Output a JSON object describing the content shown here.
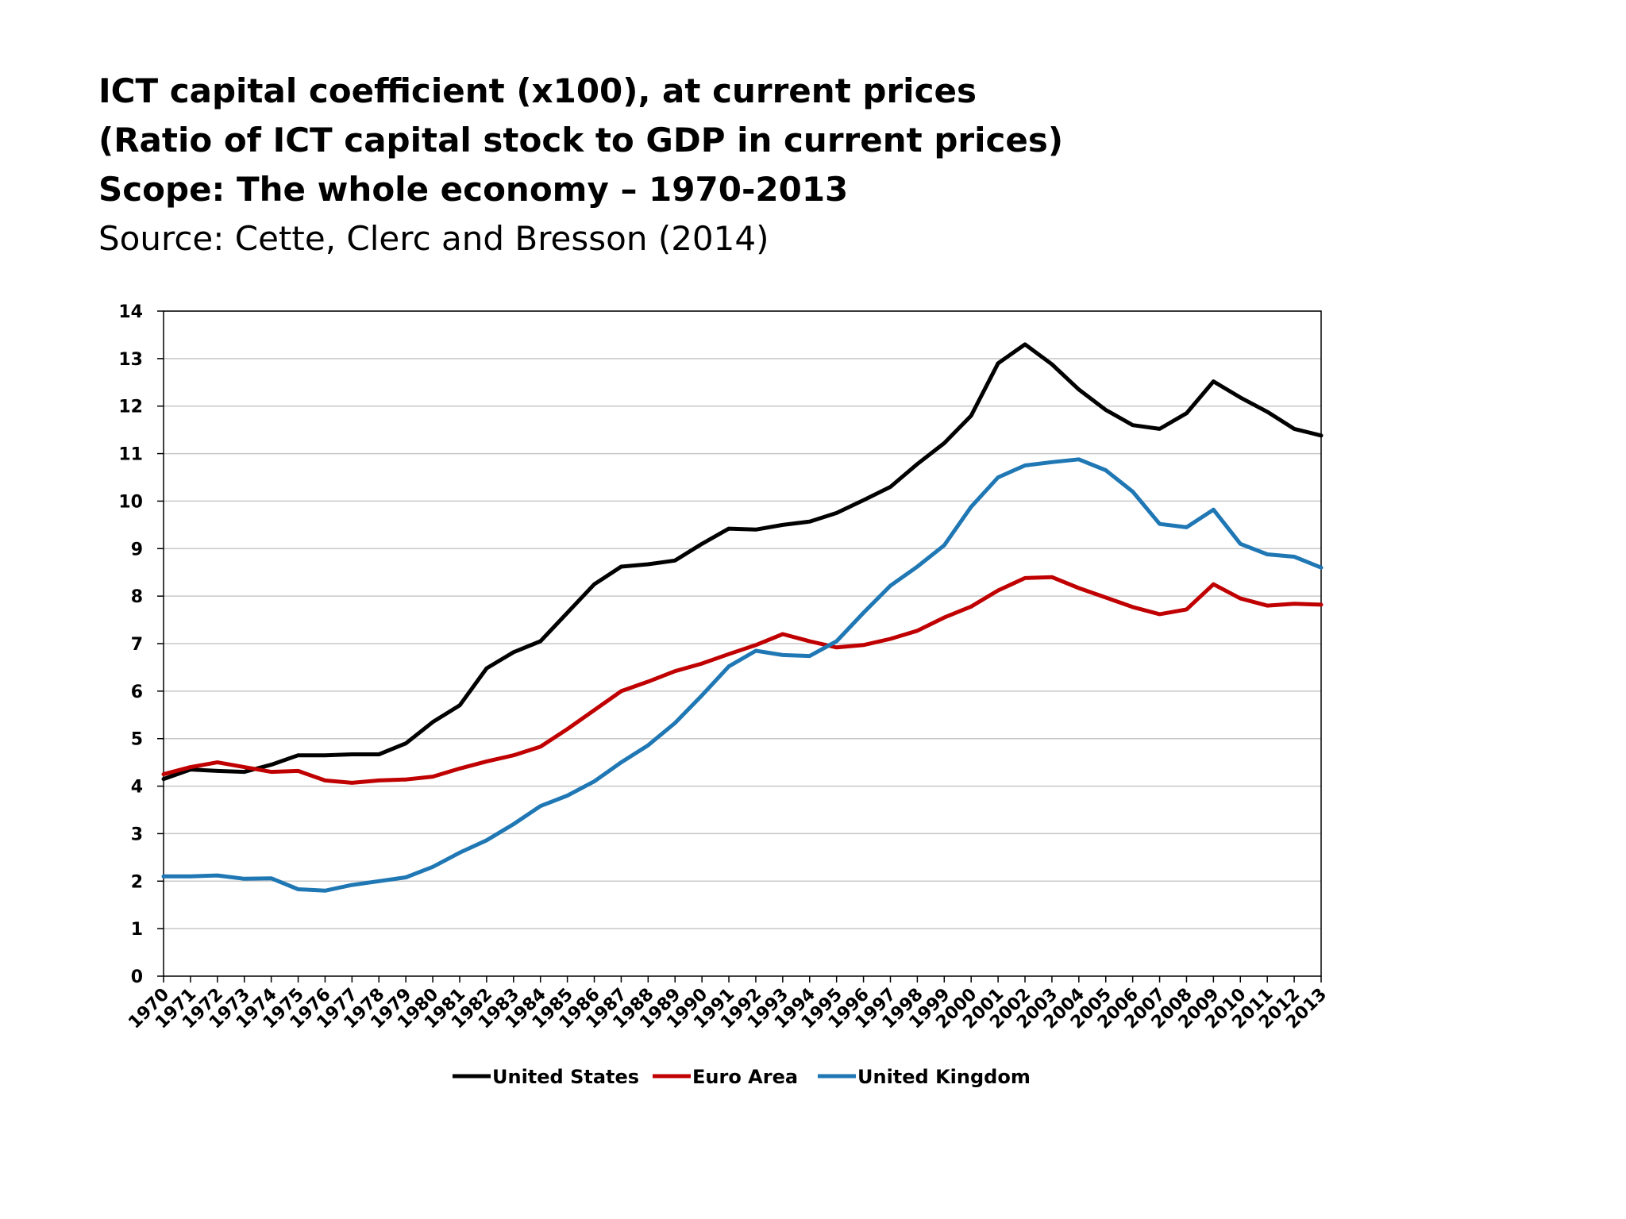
{
  "header": {
    "title_line1": "ICT capital coefficient (x100), at current prices",
    "title_line2": "(Ratio of ICT capital stock to GDP in current prices)",
    "title_line3": "Scope: The whole economy – 1970-2013",
    "source": "Source: Cette, Clerc and Bresson (2014)"
  },
  "chart_data": {
    "type": "line",
    "title": "ICT capital coefficient (x100), at current prices",
    "xlabel": "",
    "ylabel": "",
    "ylim": [
      0,
      14
    ],
    "yticks": [
      0,
      1,
      2,
      3,
      4,
      5,
      6,
      7,
      8,
      9,
      10,
      11,
      12,
      13,
      14
    ],
    "grid": true,
    "legend_position": "bottom",
    "x": [
      "1970",
      "1971",
      "1972",
      "1973",
      "1974",
      "1975",
      "1976",
      "1977",
      "1978",
      "1979",
      "1980",
      "1981",
      "1982",
      "1983",
      "1984",
      "1985",
      "1986",
      "1987",
      "1988",
      "1989",
      "1990",
      "1991",
      "1992",
      "1993",
      "1994",
      "1995",
      "1996",
      "1997",
      "1998",
      "1999",
      "2000",
      "2001",
      "2002",
      "2003",
      "2004",
      "2005",
      "2006",
      "2007",
      "2008",
      "2009",
      "2010",
      "2011",
      "2012",
      "2013"
    ],
    "series": [
      {
        "name": "United States",
        "color": "#000000",
        "values": [
          4.15,
          4.35,
          4.32,
          4.3,
          4.45,
          4.65,
          4.65,
          4.67,
          4.67,
          4.9,
          5.35,
          5.7,
          6.48,
          6.82,
          7.05,
          7.65,
          8.25,
          8.62,
          8.67,
          8.75,
          9.1,
          9.42,
          9.4,
          9.5,
          9.57,
          9.75,
          10.02,
          10.3,
          10.78,
          11.22,
          11.8,
          12.9,
          13.3,
          12.88,
          12.35,
          11.92,
          11.6,
          11.52,
          11.85,
          12.52,
          12.18,
          11.88,
          11.52,
          11.38
        ]
      },
      {
        "name": "Euro Area",
        "color": "#C00000",
        "values": [
          4.25,
          4.4,
          4.5,
          4.4,
          4.3,
          4.32,
          4.12,
          4.07,
          4.12,
          4.14,
          4.2,
          4.37,
          4.52,
          4.65,
          4.83,
          5.2,
          5.6,
          6.0,
          6.2,
          6.42,
          6.58,
          6.78,
          6.97,
          7.2,
          7.05,
          6.92,
          6.97,
          7.1,
          7.27,
          7.55,
          7.78,
          8.12,
          8.38,
          8.4,
          8.17,
          7.97,
          7.77,
          7.62,
          7.72,
          8.25,
          7.95,
          7.8,
          7.84,
          7.82
        ]
      },
      {
        "name": "United Kingdom",
        "color": "#1F77B4",
        "values": [
          2.1,
          2.1,
          2.12,
          2.05,
          2.06,
          1.83,
          1.8,
          1.92,
          2.0,
          2.08,
          2.3,
          2.6,
          2.86,
          3.2,
          3.58,
          3.8,
          4.1,
          4.5,
          4.86,
          5.33,
          5.91,
          6.52,
          6.85,
          6.76,
          6.74,
          7.05,
          7.65,
          8.22,
          8.62,
          9.07,
          9.88,
          10.5,
          10.75,
          10.82,
          10.88,
          10.65,
          10.2,
          9.52,
          9.45,
          9.82,
          9.1,
          8.88,
          8.83,
          8.6
        ]
      }
    ]
  }
}
